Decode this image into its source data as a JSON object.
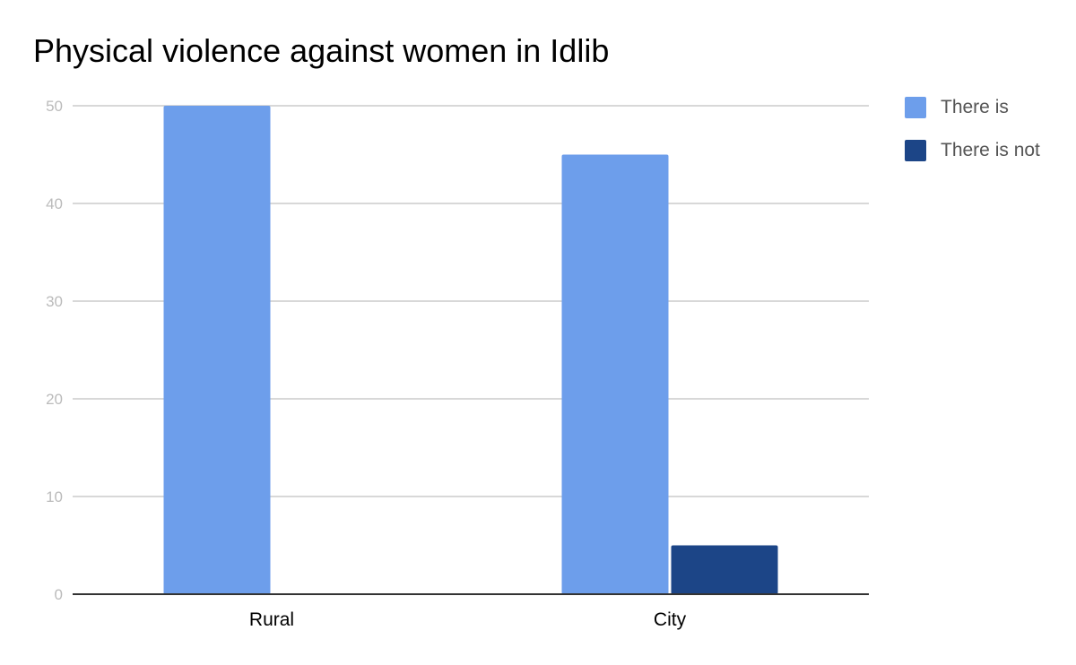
{
  "chart_data": {
    "type": "bar",
    "title": "Physical violence against women in Idlib",
    "categories": [
      "Rural",
      "City"
    ],
    "series": [
      {
        "name": "There is",
        "values": [
          50,
          45
        ],
        "color": "#6d9eeb"
      },
      {
        "name": "There is not",
        "values": [
          0,
          5
        ],
        "color": "#1c4587"
      }
    ],
    "ylim": [
      0,
      50
    ],
    "yticks": [
      0,
      10,
      20,
      30,
      40,
      50
    ],
    "grid": true,
    "legend_position": "right"
  }
}
